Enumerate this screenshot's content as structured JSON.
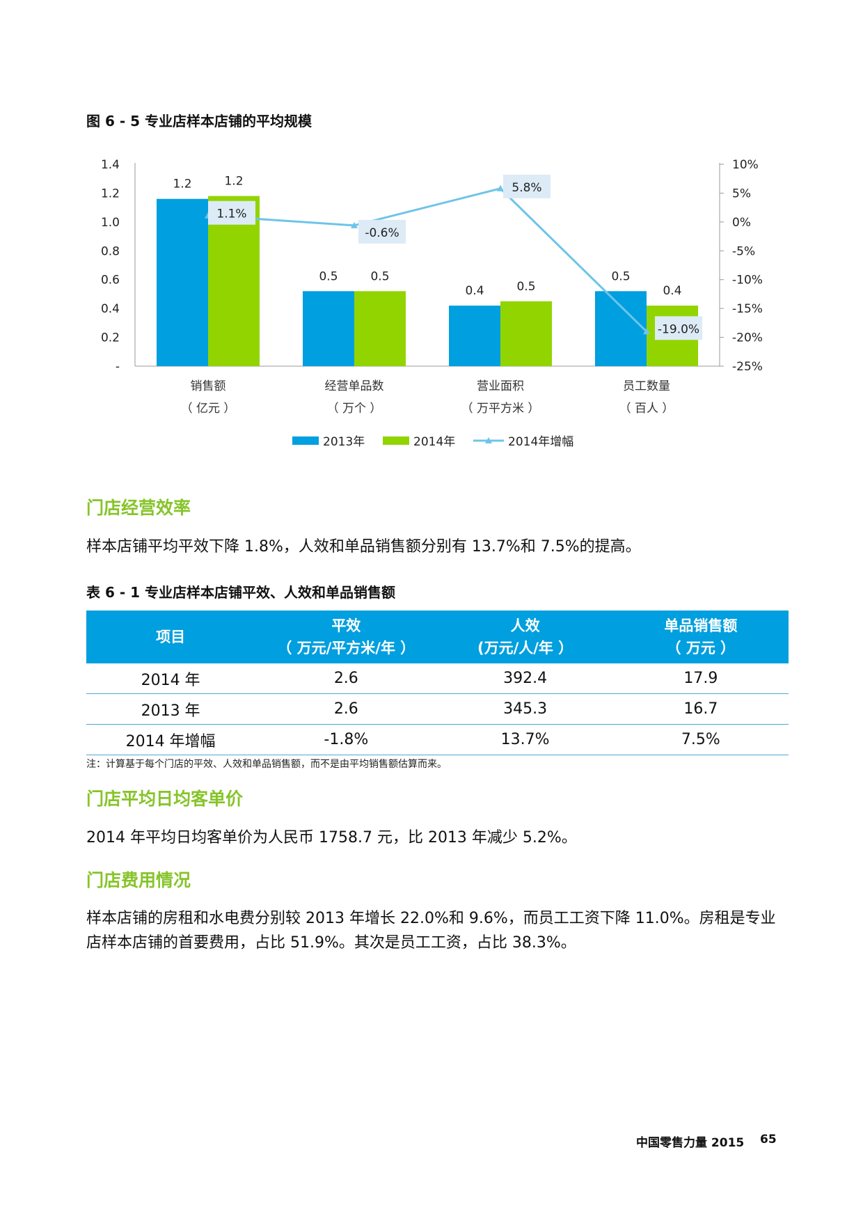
{
  "figure": {
    "title": "图 6 - 5 专业店样本店铺的平均规模"
  },
  "chart_data": {
    "type": "bar",
    "categories": [
      {
        "line1": "销售额",
        "line2": "（ 亿元 ）"
      },
      {
        "line1": "经营单品数",
        "line2": "（ 万个 ）"
      },
      {
        "line1": "营业面积",
        "line2": "（ 万平方米 ）"
      },
      {
        "line1": "员工数量",
        "line2": "（ 百人 ）"
      }
    ],
    "series": [
      {
        "name": "2013年",
        "values": [
          1.16,
          0.52,
          0.42,
          0.52
        ],
        "labels": [
          "1.2",
          "0.5",
          "0.4",
          "0.5"
        ],
        "color": "#009fdf"
      },
      {
        "name": "2014年",
        "values": [
          1.18,
          0.52,
          0.45,
          0.42
        ],
        "labels": [
          "1.2",
          "0.5",
          "0.5",
          "0.4"
        ],
        "color": "#92d400"
      }
    ],
    "line_series": {
      "name": "2014年增幅",
      "values": [
        1.1,
        -0.6,
        5.8,
        -19.0
      ],
      "labels": [
        "1.1%",
        "-0.6%",
        "5.8%",
        "-19.0%"
      ],
      "color": "#6ec4e8"
    },
    "y_left": {
      "min": 0,
      "max": 1.4,
      "ticks": [
        "-",
        "0.2",
        "0.4",
        "0.6",
        "0.8",
        "1.0",
        "1.2",
        "1.4"
      ]
    },
    "y_right": {
      "min": -25,
      "max": 10,
      "ticks": [
        "-25%",
        "-20%",
        "-15%",
        "-10%",
        "-5%",
        "0%",
        "5%",
        "10%"
      ]
    },
    "legend": "bottom"
  },
  "section1": {
    "heading": "门店经营效率",
    "text": "样本店铺平均平效下降 1.8%，人效和单品销售额分别有 13.7%和 7.5%的提高。"
  },
  "table": {
    "title": "表 6 - 1 专业店样本店铺平效、人效和单品销售额",
    "headers": [
      {
        "l1": "项目",
        "l2": ""
      },
      {
        "l1": "平效",
        "l2": "（ 万元/平方米/年 ）"
      },
      {
        "l1": "人效",
        "l2": "(万元/人/年 ）"
      },
      {
        "l1": "单品销售额",
        "l2": "（ 万元 ）"
      }
    ],
    "rows": [
      [
        "2014 年",
        "2.6",
        "392.4",
        "17.9"
      ],
      [
        "2013 年",
        "2.6",
        "345.3",
        "16.7"
      ],
      [
        "2014 年增幅",
        "-1.8%",
        "13.7%",
        "7.5%"
      ]
    ],
    "note": "注：计算基于每个门店的平效、人效和单品销售额，而不是由平均销售额估算而来。"
  },
  "section2": {
    "heading": "门店平均日均客单价",
    "text": "2014 年平均日均客单价为人民币 1758.7 元，比 2013 年减少 5.2%。"
  },
  "section3": {
    "heading": "门店费用情况",
    "text": "样本店铺的房租和水电费分别较 2013 年增长 22.0%和 9.6%，而员工工资下降 11.0%。房租是专业店样本店铺的首要费用，占比 51.9%。其次是员工工资，占比 38.3%。"
  },
  "footer": {
    "title": "中国零售力量 2015",
    "page": "65"
  }
}
